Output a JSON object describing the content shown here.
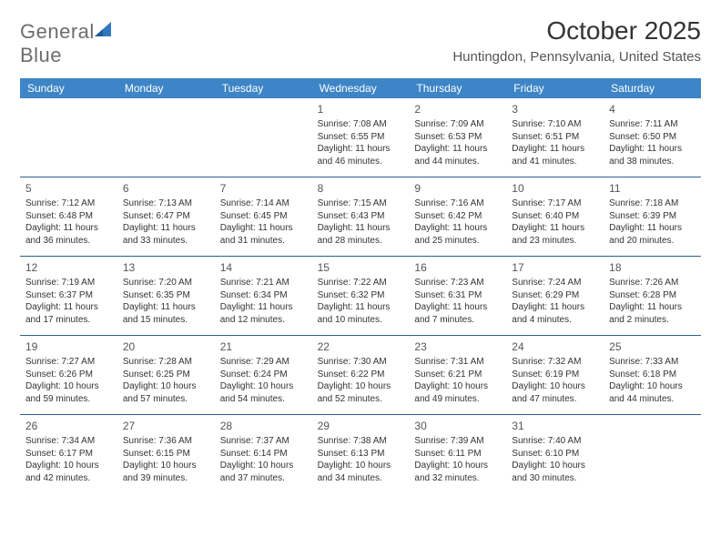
{
  "logo": {
    "word1": "General",
    "word2": "Blue"
  },
  "title": "October 2025",
  "location": "Huntingdon, Pennsylvania, United States",
  "colors": {
    "header_bg": "#3d85c6",
    "header_fg": "#ffffff",
    "divider": "#2f5f8f",
    "logo_gray": "#6d6d6d",
    "logo_blue": "#2f78bf"
  },
  "day_names": [
    "Sunday",
    "Monday",
    "Tuesday",
    "Wednesday",
    "Thursday",
    "Friday",
    "Saturday"
  ],
  "weeks": [
    [
      null,
      null,
      null,
      {
        "n": "1",
        "sr": "7:08 AM",
        "ss": "6:55 PM",
        "dlh": "11",
        "dlm": "46"
      },
      {
        "n": "2",
        "sr": "7:09 AM",
        "ss": "6:53 PM",
        "dlh": "11",
        "dlm": "44"
      },
      {
        "n": "3",
        "sr": "7:10 AM",
        "ss": "6:51 PM",
        "dlh": "11",
        "dlm": "41"
      },
      {
        "n": "4",
        "sr": "7:11 AM",
        "ss": "6:50 PM",
        "dlh": "11",
        "dlm": "38"
      }
    ],
    [
      {
        "n": "5",
        "sr": "7:12 AM",
        "ss": "6:48 PM",
        "dlh": "11",
        "dlm": "36"
      },
      {
        "n": "6",
        "sr": "7:13 AM",
        "ss": "6:47 PM",
        "dlh": "11",
        "dlm": "33"
      },
      {
        "n": "7",
        "sr": "7:14 AM",
        "ss": "6:45 PM",
        "dlh": "11",
        "dlm": "31"
      },
      {
        "n": "8",
        "sr": "7:15 AM",
        "ss": "6:43 PM",
        "dlh": "11",
        "dlm": "28"
      },
      {
        "n": "9",
        "sr": "7:16 AM",
        "ss": "6:42 PM",
        "dlh": "11",
        "dlm": "25"
      },
      {
        "n": "10",
        "sr": "7:17 AM",
        "ss": "6:40 PM",
        "dlh": "11",
        "dlm": "23"
      },
      {
        "n": "11",
        "sr": "7:18 AM",
        "ss": "6:39 PM",
        "dlh": "11",
        "dlm": "20"
      }
    ],
    [
      {
        "n": "12",
        "sr": "7:19 AM",
        "ss": "6:37 PM",
        "dlh": "11",
        "dlm": "17"
      },
      {
        "n": "13",
        "sr": "7:20 AM",
        "ss": "6:35 PM",
        "dlh": "11",
        "dlm": "15"
      },
      {
        "n": "14",
        "sr": "7:21 AM",
        "ss": "6:34 PM",
        "dlh": "11",
        "dlm": "12"
      },
      {
        "n": "15",
        "sr": "7:22 AM",
        "ss": "6:32 PM",
        "dlh": "11",
        "dlm": "10"
      },
      {
        "n": "16",
        "sr": "7:23 AM",
        "ss": "6:31 PM",
        "dlh": "11",
        "dlm": "7"
      },
      {
        "n": "17",
        "sr": "7:24 AM",
        "ss": "6:29 PM",
        "dlh": "11",
        "dlm": "4"
      },
      {
        "n": "18",
        "sr": "7:26 AM",
        "ss": "6:28 PM",
        "dlh": "11",
        "dlm": "2"
      }
    ],
    [
      {
        "n": "19",
        "sr": "7:27 AM",
        "ss": "6:26 PM",
        "dlh": "10",
        "dlm": "59"
      },
      {
        "n": "20",
        "sr": "7:28 AM",
        "ss": "6:25 PM",
        "dlh": "10",
        "dlm": "57"
      },
      {
        "n": "21",
        "sr": "7:29 AM",
        "ss": "6:24 PM",
        "dlh": "10",
        "dlm": "54"
      },
      {
        "n": "22",
        "sr": "7:30 AM",
        "ss": "6:22 PM",
        "dlh": "10",
        "dlm": "52"
      },
      {
        "n": "23",
        "sr": "7:31 AM",
        "ss": "6:21 PM",
        "dlh": "10",
        "dlm": "49"
      },
      {
        "n": "24",
        "sr": "7:32 AM",
        "ss": "6:19 PM",
        "dlh": "10",
        "dlm": "47"
      },
      {
        "n": "25",
        "sr": "7:33 AM",
        "ss": "6:18 PM",
        "dlh": "10",
        "dlm": "44"
      }
    ],
    [
      {
        "n": "26",
        "sr": "7:34 AM",
        "ss": "6:17 PM",
        "dlh": "10",
        "dlm": "42"
      },
      {
        "n": "27",
        "sr": "7:36 AM",
        "ss": "6:15 PM",
        "dlh": "10",
        "dlm": "39"
      },
      {
        "n": "28",
        "sr": "7:37 AM",
        "ss": "6:14 PM",
        "dlh": "10",
        "dlm": "37"
      },
      {
        "n": "29",
        "sr": "7:38 AM",
        "ss": "6:13 PM",
        "dlh": "10",
        "dlm": "34"
      },
      {
        "n": "30",
        "sr": "7:39 AM",
        "ss": "6:11 PM",
        "dlh": "10",
        "dlm": "32"
      },
      {
        "n": "31",
        "sr": "7:40 AM",
        "ss": "6:10 PM",
        "dlh": "10",
        "dlm": "30"
      },
      null
    ]
  ],
  "labels": {
    "sunrise": "Sunrise:",
    "sunset": "Sunset:",
    "daylight_prefix": "Daylight:",
    "hours_word": "hours",
    "and_word": "and",
    "minutes_word": "minutes."
  }
}
